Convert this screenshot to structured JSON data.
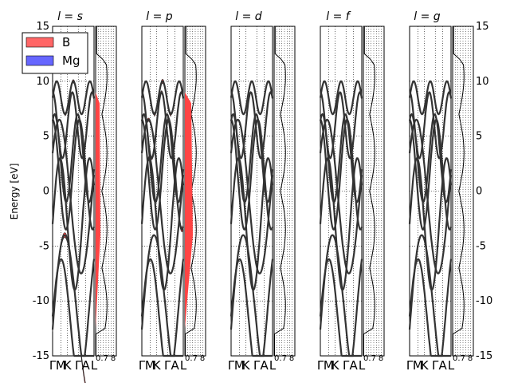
{
  "chart_data": {
    "type": "line",
    "description": "Fat-band structure of MgB2 projected by angular momentum; each panel pairs a band plot with a density-of-states strip",
    "ylabel": "Energy [eV]",
    "ylim": [
      -15,
      15
    ],
    "yticks": [
      -15,
      -10,
      -5,
      0,
      5,
      10,
      15
    ],
    "kpoint_labels": [
      "Γ",
      "M",
      "K",
      "Γ",
      "A",
      "L"
    ],
    "dos_tick_labels": [
      "0.7",
      "8"
    ],
    "legend": {
      "placement": "top-left",
      "entries": [
        {
          "name": "B",
          "color": "#ff6666"
        },
        {
          "name": "Mg",
          "color": "#6666ff"
        }
      ]
    },
    "panels": [
      {
        "title": "l = s",
        "weight": "s"
      },
      {
        "title": "l = p",
        "weight": "p"
      },
      {
        "title": "l = d",
        "weight": "d"
      },
      {
        "title": "l = f",
        "weight": "f"
      },
      {
        "title": "l = g",
        "weight": "g"
      }
    ],
    "band_color": "#333333",
    "fat_color": "#ff4444"
  }
}
